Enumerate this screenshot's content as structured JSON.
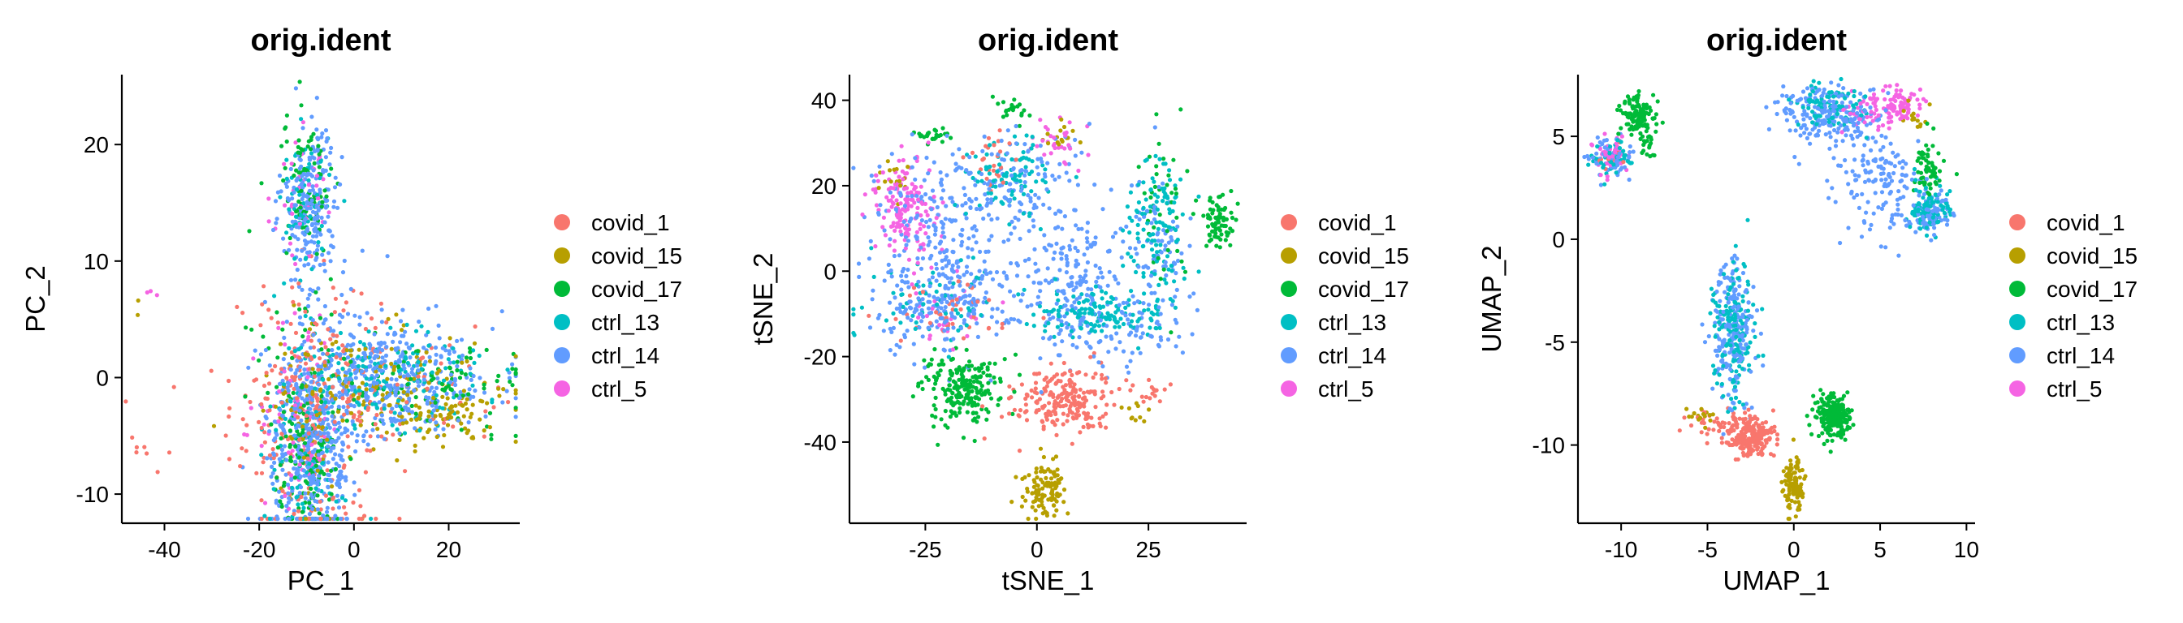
{
  "chart_data": [
    {
      "type": "scatter",
      "title": "orig.ident",
      "xlabel": "PC_1",
      "ylabel": "PC_2",
      "xlim": [
        -49,
        35
      ],
      "ylim": [
        -12.5,
        26
      ],
      "xticks": [
        -40,
        -20,
        0,
        20
      ],
      "yticks": [
        -10,
        0,
        10,
        20
      ],
      "legend_position": "right",
      "series": [
        {
          "name": "covid_1",
          "color": "#F8766D",
          "clusters": [
            [
              -10,
              -3,
              8,
              6,
              220
            ],
            [
              5,
              -1,
              12,
              2.5,
              90
            ],
            [
              -45,
              -5,
              3,
              1.5,
              8
            ]
          ]
        },
        {
          "name": "covid_15",
          "color": "#B79F00",
          "clusters": [
            [
              5,
              -1,
              12,
              2.5,
              140
            ],
            [
              20,
              -3,
              6,
              1.5,
              70
            ],
            [
              -10,
              -4,
              4,
              5,
              40
            ],
            [
              -46,
              7,
              1,
              1,
              2
            ]
          ]
        },
        {
          "name": "covid_17",
          "color": "#00BA38",
          "clusters": [
            [
              -10,
              17,
              2.5,
              3,
              80
            ],
            [
              -10,
              -7,
              3.5,
              4,
              130
            ],
            [
              15,
              -1,
              12,
              2,
              100
            ],
            [
              -10,
              5,
              6,
              4,
              25
            ]
          ]
        },
        {
          "name": "ctrl_13",
          "color": "#00BFC4",
          "clusters": [
            [
              -10,
              15,
              3,
              3,
              60
            ],
            [
              -10,
              -5,
              4,
              5,
              110
            ],
            [
              8,
              0,
              10,
              2,
              140
            ]
          ]
        },
        {
          "name": "ctrl_14",
          "color": "#619CFF",
          "clusters": [
            [
              -9,
              15,
              3,
              3,
              220
            ],
            [
              -9,
              -6,
              4.5,
              4.5,
              450
            ],
            [
              8,
              0,
              10,
              2.5,
              380
            ],
            [
              -5,
              3,
              6,
              3,
              40
            ]
          ]
        },
        {
          "name": "ctrl_5",
          "color": "#F564E3",
          "clusters": [
            [
              -10,
              15,
              3,
              3,
              40
            ],
            [
              -12,
              -4,
              5,
              4,
              70
            ],
            [
              -42,
              7,
              2,
              2,
              3
            ]
          ]
        }
      ]
    },
    {
      "type": "scatter",
      "title": "orig.ident",
      "xlabel": "tSNE_1",
      "ylabel": "tSNE_2",
      "xlim": [
        -42,
        47
      ],
      "ylim": [
        -59,
        46
      ],
      "xticks": [
        -25,
        0,
        25
      ],
      "yticks": [
        -40,
        -20,
        0,
        20,
        40
      ],
      "legend_position": "right",
      "series": [
        {
          "name": "covid_1",
          "color": "#F8766D",
          "clusters": [
            [
              6,
              -30,
              5.5,
              4,
              220
            ],
            [
              -20,
              -10,
              8,
              4,
              40
            ],
            [
              -10,
              25,
              4,
              4,
              25
            ],
            [
              25,
              -28,
              2,
              1.5,
              15
            ]
          ]
        },
        {
          "name": "covid_15",
          "color": "#B79F00",
          "clusters": [
            [
              2,
              -51,
              2.5,
              3,
              110
            ],
            [
              -32,
              22,
              2,
              2,
              15
            ],
            [
              5,
              32,
              2,
              2,
              15
            ],
            [
              22,
              -32,
              1.5,
              1.5,
              10
            ]
          ]
        },
        {
          "name": "covid_17",
          "color": "#00BA38",
          "clusters": [
            [
              -17,
              -28,
              4.5,
              4,
              220
            ],
            [
              40,
              12,
              2,
              3,
              70
            ],
            [
              -23,
              32,
              2,
              1,
              25
            ],
            [
              -6,
              38,
              2,
              1.5,
              20
            ],
            [
              28,
              15,
              3,
              8,
              40
            ]
          ]
        },
        {
          "name": "ctrl_13",
          "color": "#00BFC4",
          "clusters": [
            [
              15,
              -10,
              8,
              3,
              150
            ],
            [
              27,
              10,
              4,
              8,
              110
            ],
            [
              -5,
              22,
              5,
              5,
              90
            ],
            [
              -25,
              -8,
              8,
              5,
              60
            ]
          ]
        },
        {
          "name": "ctrl_14",
          "color": "#619CFF",
          "clusters": [
            [
              -22,
              -7,
              8,
              6,
              230
            ],
            [
              -22,
              12,
              8,
              8,
              180
            ],
            [
              8,
              -2,
              5,
              9,
              200
            ],
            [
              -4,
              22,
              6,
              6,
              110
            ],
            [
              27,
              5,
              4,
              10,
              90
            ],
            [
              22,
              -15,
              6,
              3,
              60
            ]
          ]
        },
        {
          "name": "ctrl_5",
          "color": "#F564E3",
          "clusters": [
            [
              -30,
              15,
              3.5,
              6,
              150
            ],
            [
              5,
              30,
              3,
              3,
              30
            ],
            [
              -20,
              -10,
              6,
              5,
              25
            ]
          ]
        }
      ]
    },
    {
      "type": "scatter",
      "title": "orig.ident",
      "xlabel": "UMAP_1",
      "ylabel": "UMAP_2",
      "xlim": [
        -12.5,
        10.5
      ],
      "ylim": [
        -13.8,
        8
      ],
      "xticks": [
        -10,
        -5,
        0,
        5,
        10
      ],
      "yticks": [
        -10,
        -5,
        0,
        5
      ],
      "legend_position": "right",
      "series": [
        {
          "name": "covid_1",
          "color": "#F8766D",
          "clusters": [
            [
              -2.5,
              -9.6,
              0.7,
              0.5,
              230
            ],
            [
              -4.5,
              -9,
              0.8,
              0.4,
              30
            ],
            [
              -10.5,
              4,
              0.5,
              0.4,
              10
            ]
          ]
        },
        {
          "name": "covid_15",
          "color": "#B79F00",
          "clusters": [
            [
              0,
              -12,
              0.3,
              0.7,
              110
            ],
            [
              -5.5,
              -8.5,
              0.4,
              0.3,
              15
            ],
            [
              7,
              6,
              0.4,
              0.4,
              15
            ]
          ]
        },
        {
          "name": "covid_17",
          "color": "#00BA38",
          "clusters": [
            [
              2.2,
              -8.6,
              0.5,
              0.5,
              240
            ],
            [
              -9,
              6,
              0.5,
              0.5,
              110
            ],
            [
              7.8,
              3.5,
              0.4,
              0.8,
              60
            ],
            [
              -8.5,
              4.5,
              0.3,
              0.5,
              20
            ]
          ]
        },
        {
          "name": "ctrl_13",
          "color": "#00BFC4",
          "clusters": [
            [
              -3.5,
              -4.3,
              0.6,
              1.6,
              170
            ],
            [
              2,
              6.5,
              1,
              0.5,
              90
            ],
            [
              7.8,
              1.5,
              0.6,
              0.6,
              100
            ],
            [
              -10.5,
              4,
              0.6,
              0.5,
              40
            ]
          ]
        },
        {
          "name": "ctrl_14",
          "color": "#619CFF",
          "clusters": [
            [
              -3.5,
              -4.5,
              0.6,
              1.8,
              210
            ],
            [
              2,
              6,
              1.4,
              0.7,
              200
            ],
            [
              5,
              3,
              1.2,
              1.5,
              150
            ],
            [
              -10.5,
              4,
              0.6,
              0.5,
              70
            ],
            [
              8,
              1.2,
              0.6,
              0.6,
              80
            ]
          ]
        },
        {
          "name": "ctrl_5",
          "color": "#F564E3",
          "clusters": [
            [
              -10.5,
              4,
              0.5,
              0.5,
              40
            ],
            [
              6,
              6.5,
              0.7,
              0.5,
              80
            ],
            [
              4,
              6.2,
              0.7,
              0.4,
              30
            ]
          ]
        }
      ]
    }
  ]
}
